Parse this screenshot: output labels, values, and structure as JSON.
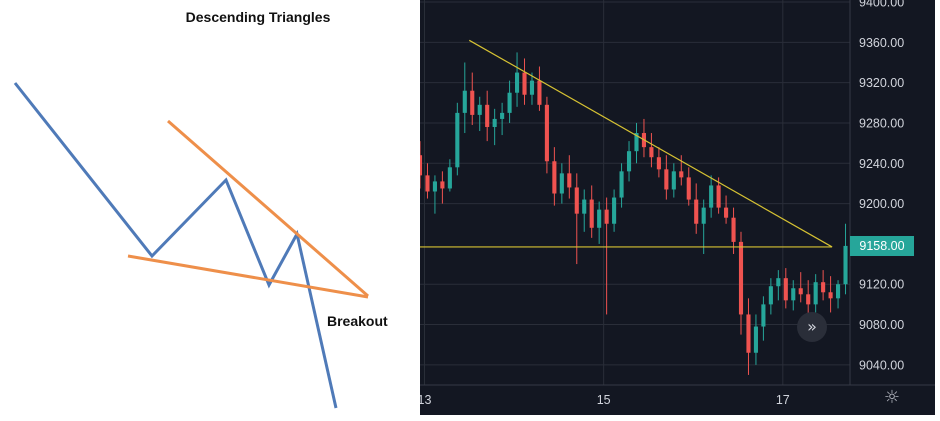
{
  "diagram": {
    "title": "Descending Triangles",
    "breakout_label": "Breakout",
    "colors": {
      "price_path": "#4f7ab8",
      "trendlines": "#ee8f4a"
    }
  },
  "chart_data": {
    "type": "candlestick",
    "title": "",
    "xlabel": "",
    "ylabel": "",
    "x_ticks": [
      "13",
      "15",
      "17"
    ],
    "y_ticks": [
      "9400.00",
      "9360.00",
      "9320.00",
      "9280.00",
      "9240.00",
      "9200.00",
      "9120.00",
      "9080.00",
      "9040.00"
    ],
    "ylim": [
      9020,
      9402
    ],
    "xlim": [
      12.95,
      17.75
    ],
    "last_price": "9158.00",
    "grid": true,
    "colors": {
      "up": "#26a69a",
      "down": "#ef5350",
      "trendline": "#d6c233",
      "background": "#131722"
    },
    "trendlines": [
      {
        "from": [
          13.5,
          9362
        ],
        "to": [
          17.55,
          9157
        ]
      },
      {
        "from": [
          12.95,
          9157
        ],
        "to": [
          17.55,
          9157
        ]
      }
    ],
    "candles": [
      [
        9248,
        9262,
        9215,
        9228
      ],
      [
        9228,
        9240,
        9205,
        9212
      ],
      [
        9212,
        9228,
        9190,
        9222
      ],
      [
        9222,
        9232,
        9200,
        9215
      ],
      [
        9215,
        9244,
        9212,
        9236
      ],
      [
        9236,
        9300,
        9228,
        9290
      ],
      [
        9290,
        9340,
        9270,
        9312
      ],
      [
        9312,
        9330,
        9278,
        9288
      ],
      [
        9288,
        9306,
        9272,
        9298
      ],
      [
        9298,
        9312,
        9262,
        9276
      ],
      [
        9276,
        9294,
        9258,
        9284
      ],
      [
        9284,
        9300,
        9268,
        9290
      ],
      [
        9290,
        9322,
        9280,
        9310
      ],
      [
        9310,
        9350,
        9296,
        9330
      ],
      [
        9330,
        9344,
        9298,
        9308
      ],
      [
        9308,
        9330,
        9298,
        9322
      ],
      [
        9322,
        9336,
        9292,
        9298
      ],
      [
        9298,
        9306,
        9230,
        9242
      ],
      [
        9242,
        9256,
        9198,
        9210
      ],
      [
        9210,
        9240,
        9200,
        9230
      ],
      [
        9230,
        9248,
        9205,
        9216
      ],
      [
        9216,
        9230,
        9140,
        9190
      ],
      [
        9190,
        9214,
        9172,
        9204
      ],
      [
        9204,
        9218,
        9166,
        9176
      ],
      [
        9176,
        9202,
        9160,
        9194
      ],
      [
        9194,
        9206,
        9090,
        9180
      ],
      [
        9180,
        9214,
        9172,
        9206
      ],
      [
        9206,
        9240,
        9196,
        9232
      ],
      [
        9232,
        9262,
        9222,
        9252
      ],
      [
        9252,
        9280,
        9240,
        9270
      ],
      [
        9270,
        9284,
        9246,
        9256
      ],
      [
        9256,
        9270,
        9236,
        9246
      ],
      [
        9246,
        9256,
        9226,
        9234
      ],
      [
        9234,
        9248,
        9204,
        9214
      ],
      [
        9214,
        9240,
        9206,
        9232
      ],
      [
        9232,
        9248,
        9218,
        9226
      ],
      [
        9226,
        9236,
        9198,
        9204
      ],
      [
        9204,
        9220,
        9170,
        9180
      ],
      [
        9180,
        9204,
        9150,
        9196
      ],
      [
        9196,
        9228,
        9186,
        9218
      ],
      [
        9218,
        9226,
        9190,
        9196
      ],
      [
        9196,
        9208,
        9180,
        9186
      ],
      [
        9186,
        9196,
        9150,
        9162
      ],
      [
        9162,
        9172,
        9070,
        9090
      ],
      [
        9090,
        9106,
        9030,
        9052
      ],
      [
        9052,
        9090,
        9040,
        9078
      ],
      [
        9078,
        9108,
        9064,
        9100
      ],
      [
        9100,
        9126,
        9090,
        9118
      ],
      [
        9118,
        9134,
        9104,
        9126
      ],
      [
        9126,
        9136,
        9096,
        9104
      ],
      [
        9104,
        9124,
        9094,
        9116
      ],
      [
        9116,
        9132,
        9102,
        9110
      ],
      [
        9110,
        9124,
        9080,
        9100
      ],
      [
        9100,
        9130,
        9092,
        9122
      ],
      [
        9122,
        9134,
        9104,
        9112
      ],
      [
        9112,
        9128,
        9092,
        9106
      ],
      [
        9106,
        9124,
        9096,
        9120
      ],
      [
        9120,
        9180,
        9110,
        9158
      ]
    ]
  },
  "controls": {
    "scroll_glyph": "»",
    "settings_glyph": "☼"
  }
}
